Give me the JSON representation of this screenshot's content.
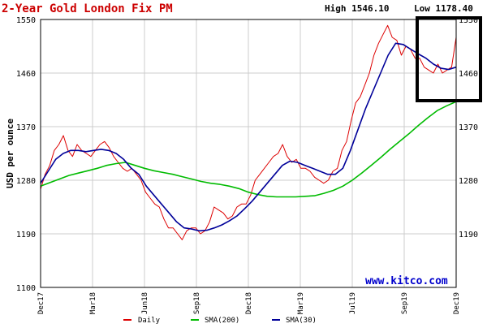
{
  "chart_data": {
    "type": "line",
    "title": "2-Year Gold London Fix PM",
    "high_label": "High 1546.10",
    "low_label": "Low 1178.40",
    "ylabel": "USD per ounce",
    "watermark": "www.kitco.com",
    "ylim": [
      1100,
      1550
    ],
    "y_ticks": [
      1100,
      1190,
      1280,
      1370,
      1460,
      1550
    ],
    "y_tick_labels": [
      "1100",
      "1190",
      "1280",
      "1370",
      "1460",
      "1550"
    ],
    "right_tick_labels": [
      "1550",
      "1460",
      "1370",
      "1280",
      "1190"
    ],
    "x_tick_labels": [
      "Dec17",
      "Mar18",
      "Jun18",
      "Sep18",
      "Dec18",
      "Mar19",
      "Jul19",
      "Sep19",
      "Dec19"
    ],
    "grid": true,
    "legend_position": "bottom",
    "colors": {
      "daily": "#dd0000",
      "sma200": "#00bb00",
      "sma30": "#000099",
      "title": "#cc0000",
      "grid": "#cccccc",
      "highlight_box": "#000000",
      "watermark": "#0000cc"
    },
    "series": [
      {
        "name": "Daily",
        "color": "#dd0000",
        "values": [
          1265,
          1290,
          1305,
          1330,
          1340,
          1355,
          1330,
          1320,
          1340,
          1330,
          1325,
          1320,
          1330,
          1340,
          1345,
          1335,
          1320,
          1310,
          1300,
          1295,
          1300,
          1290,
          1280,
          1260,
          1250,
          1240,
          1235,
          1215,
          1200,
          1200,
          1190,
          1180,
          1195,
          1200,
          1200,
          1190,
          1195,
          1210,
          1235,
          1230,
          1225,
          1215,
          1220,
          1235,
          1240,
          1240,
          1255,
          1280,
          1290,
          1300,
          1310,
          1320,
          1325,
          1340,
          1320,
          1310,
          1315,
          1300,
          1300,
          1295,
          1285,
          1280,
          1275,
          1280,
          1295,
          1300,
          1330,
          1345,
          1380,
          1410,
          1420,
          1440,
          1460,
          1490,
          1510,
          1525,
          1540,
          1520,
          1515,
          1490,
          1505,
          1500,
          1485,
          1485,
          1470,
          1465,
          1460,
          1475,
          1460,
          1465,
          1470,
          1520
        ]
      },
      {
        "name": "SMA(200)",
        "color": "#00bb00",
        "values": [
          1270,
          1276,
          1282,
          1288,
          1292,
          1296,
          1300,
          1305,
          1308,
          1310,
          1305,
          1300,
          1296,
          1293,
          1290,
          1286,
          1282,
          1278,
          1275,
          1273,
          1270,
          1266,
          1260,
          1256,
          1253,
          1252,
          1252,
          1252,
          1253,
          1254,
          1258,
          1263,
          1270,
          1280,
          1292,
          1305,
          1318,
          1332,
          1345,
          1358,
          1372,
          1385,
          1397,
          1405,
          1412
        ]
      },
      {
        "name": "SMA(30)",
        "color": "#000099",
        "values": [
          1275,
          1295,
          1315,
          1325,
          1330,
          1330,
          1328,
          1330,
          1332,
          1330,
          1325,
          1315,
          1300,
          1290,
          1270,
          1255,
          1240,
          1225,
          1210,
          1200,
          1198,
          1195,
          1196,
          1200,
          1205,
          1212,
          1220,
          1232,
          1245,
          1260,
          1275,
          1290,
          1305,
          1312,
          1310,
          1305,
          1300,
          1295,
          1290,
          1290,
          1300,
          1330,
          1365,
          1400,
          1430,
          1460,
          1490,
          1510,
          1508,
          1500,
          1492,
          1485,
          1475,
          1468,
          1466,
          1470
        ]
      }
    ]
  }
}
